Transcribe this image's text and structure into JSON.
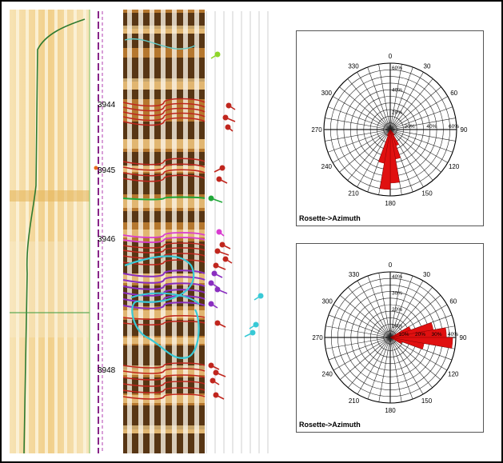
{
  "log": {
    "depth_labels": [
      "3944",
      "3945",
      "3946",
      "3948"
    ],
    "colors": {
      "sand": "#f1d59a",
      "sand_light": "#f8ecc8",
      "core_dark": "#3a200c",
      "core_mid": "#b5772e",
      "bedding_red": "#c0261e",
      "fracture_purple": "#8a2fc0",
      "fracture_magenta": "#d93bd0",
      "cyan": "#39c9d6",
      "green_curve": "#2f7a2f"
    }
  },
  "chart_data": [
    {
      "type": "rose",
      "title": "",
      "caption": "Rosette->Azimuth",
      "directions": [
        0,
        30,
        60,
        90,
        120,
        150,
        180,
        210,
        240,
        270,
        300,
        330
      ],
      "direction_labels": [
        "0",
        "30",
        "60",
        "90",
        "120",
        "150",
        "180",
        "210",
        "240",
        "270",
        "300",
        "330"
      ],
      "ring_labels": [
        "20%",
        "40%",
        "60%"
      ],
      "rmax": 62,
      "bins_deg": 10,
      "petals": [
        {
          "from": 140,
          "to": 150,
          "value": 6
        },
        {
          "from": 150,
          "to": 160,
          "value": 16
        },
        {
          "from": 160,
          "to": 170,
          "value": 28
        },
        {
          "from": 170,
          "to": 180,
          "value": 50
        },
        {
          "from": 180,
          "to": 190,
          "value": 56
        },
        {
          "from": 190,
          "to": 200,
          "value": 32
        },
        {
          "from": 200,
          "to": 210,
          "value": 6
        }
      ],
      "petal_color": "#e01010"
    },
    {
      "type": "rose",
      "title": "",
      "caption": "Rosette->Azimuth",
      "directions": [
        0,
        30,
        60,
        90,
        120,
        150,
        180,
        210,
        240,
        270,
        300,
        330
      ],
      "direction_labels": [
        "0",
        "30",
        "60",
        "90",
        "120",
        "150",
        "180",
        "210",
        "240",
        "270",
        "300",
        "330"
      ],
      "ring_labels": [
        "10%",
        "20%",
        "30%",
        "40%"
      ],
      "rmax": 42,
      "bins_deg": 10,
      "petals": [
        {
          "from": 60,
          "to": 70,
          "value": 14
        },
        {
          "from": 70,
          "to": 80,
          "value": 28
        },
        {
          "from": 80,
          "to": 90,
          "value": 36
        },
        {
          "from": 90,
          "to": 100,
          "value": 40
        },
        {
          "from": 100,
          "to": 110,
          "value": 22
        },
        {
          "from": 110,
          "to": 120,
          "value": 8
        }
      ],
      "petal_color": "#e01010"
    }
  ]
}
